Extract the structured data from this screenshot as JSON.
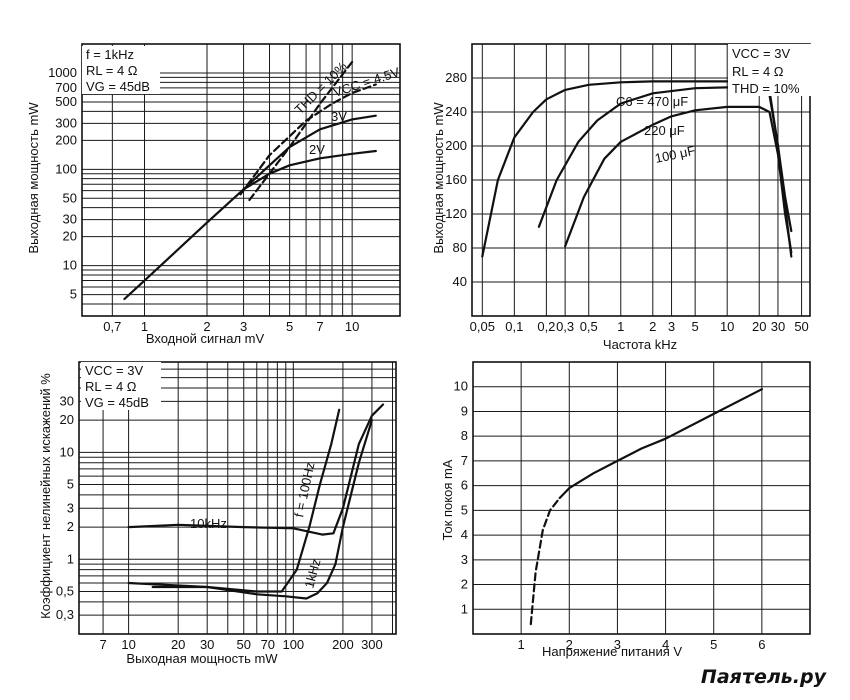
{
  "watermark": "Паяτель.ру",
  "chart_data": [
    {
      "id": "c1",
      "type": "line",
      "xscale": "log",
      "yscale": "log",
      "xlabel": "Входной сигнал mV",
      "ylabel": "Выходная мощность mW",
      "xlim": [
        0.5,
        17
      ],
      "ylim": [
        3,
        2000
      ],
      "xticks": [
        0.7,
        1,
        2,
        3,
        5,
        7,
        10
      ],
      "yticks": [
        5,
        10,
        20,
        30,
        50,
        100,
        200,
        300,
        500,
        700,
        1000
      ],
      "xgrid": [
        0.5,
        0.7,
        1,
        2,
        3,
        4,
        5,
        6,
        7,
        8,
        9,
        10
      ],
      "ygrid": [
        3,
        4,
        5,
        6,
        7,
        8,
        9,
        10,
        20,
        30,
        40,
        50,
        60,
        70,
        80,
        90,
        100,
        200,
        300,
        400,
        500,
        600,
        700,
        800,
        900,
        1000,
        2000
      ],
      "conditions": [
        "f = 1kHz",
        "RL = 4 Ω",
        "VG = 45dB"
      ],
      "series": [
        {
          "name": "VCC = 4.5V",
          "dashed": true,
          "x": [
            2.9,
            4,
            6,
            8,
            10,
            13
          ],
          "y": [
            55,
            140,
            320,
            480,
            620,
            760
          ]
        },
        {
          "name": "3V",
          "x": [
            0.8,
            1,
            2,
            3,
            4,
            5,
            7,
            10,
            13
          ],
          "y": [
            4.5,
            7,
            28,
            62,
            110,
            170,
            260,
            330,
            360
          ]
        },
        {
          "name": "2V",
          "x": [
            3,
            4,
            5,
            7,
            10,
            13
          ],
          "y": [
            62,
            90,
            110,
            130,
            145,
            155
          ]
        },
        {
          "name": "THD = 10%",
          "dashed": true,
          "x": [
            3.2,
            5,
            7,
            10
          ],
          "y": [
            48,
            170,
            480,
            1300
          ]
        }
      ]
    },
    {
      "id": "c2",
      "type": "line",
      "xscale": "log",
      "yscale": "linear",
      "xlabel": "Частота kHz",
      "ylabel": "Выходная мощность mW",
      "xlim": [
        0.04,
        60
      ],
      "ylim": [
        0,
        320
      ],
      "xticks": [
        0.05,
        0.1,
        0.2,
        0.3,
        0.5,
        1,
        2,
        3,
        5,
        10,
        20,
        30,
        50
      ],
      "yticks": [
        40,
        80,
        120,
        160,
        200,
        240,
        280
      ],
      "xgrid": [
        0.05,
        0.1,
        0.2,
        0.3,
        0.5,
        1,
        2,
        3,
        5,
        10,
        20,
        30,
        50
      ],
      "ygrid": [
        40,
        80,
        120,
        160,
        200,
        240,
        280
      ],
      "conditions": [
        "VCC = 3V",
        "RL = 4 Ω",
        "THD = 10%"
      ],
      "series": [
        {
          "name": "C6 = 470 μF",
          "x": [
            0.05,
            0.07,
            0.1,
            0.15,
            0.2,
            0.3,
            0.5,
            1,
            2,
            5,
            10,
            20,
            25,
            30,
            35,
            40
          ],
          "y": [
            70,
            160,
            210,
            240,
            255,
            266,
            272,
            275,
            276,
            276,
            276,
            275,
            265,
            200,
            140,
            100
          ]
        },
        {
          "name": "220 μF",
          "x": [
            0.17,
            0.25,
            0.4,
            0.6,
            1,
            2,
            5,
            10,
            20,
            25,
            30,
            35,
            40
          ],
          "y": [
            105,
            160,
            205,
            230,
            250,
            262,
            268,
            269,
            269,
            260,
            200,
            130,
            70
          ]
        },
        {
          "name": "100 μF",
          "x": [
            0.3,
            0.45,
            0.7,
            1,
            2,
            3,
            5,
            10,
            20,
            25,
            30,
            35,
            40
          ],
          "y": [
            82,
            140,
            185,
            205,
            225,
            235,
            242,
            246,
            246,
            240,
            190,
            120,
            75
          ]
        }
      ]
    },
    {
      "id": "c3",
      "type": "line",
      "xscale": "log",
      "yscale": "log",
      "xlabel": "Выходная мощность mW",
      "ylabel": "Коэффициент нелинейных искажений %",
      "xlim": [
        5,
        420
      ],
      "ylim": [
        0.2,
        70
      ],
      "xticks": [
        7,
        10,
        20,
        30,
        50,
        70,
        100,
        200,
        300
      ],
      "yticks": [
        0.3,
        0.5,
        1,
        2,
        3,
        5,
        10,
        20,
        30
      ],
      "xgrid": [
        5,
        7,
        10,
        20,
        30,
        40,
        50,
        60,
        70,
        80,
        90,
        100,
        200,
        300,
        400
      ],
      "ygrid": [
        0.2,
        0.3,
        0.4,
        0.5,
        0.6,
        0.7,
        0.8,
        0.9,
        1,
        2,
        3,
        4,
        5,
        6,
        7,
        8,
        9,
        10,
        20,
        30,
        40,
        50,
        60,
        70
      ],
      "conditions": [
        "VCC = 3V",
        "RL = 4 Ω",
        "VG = 45dB"
      ],
      "series": [
        {
          "name": "10kHz",
          "x": [
            10,
            20,
            50,
            100,
            150,
            175,
            200,
            250,
            300,
            350
          ],
          "y": [
            2,
            2.1,
            2,
            1.95,
            1.7,
            1.75,
            3,
            12,
            22,
            28
          ]
        },
        {
          "name": "f = 100Hz",
          "x": [
            10,
            30,
            60,
            85,
            105,
            125,
            145,
            170,
            190
          ],
          "y": [
            0.6,
            0.55,
            0.5,
            0.5,
            0.8,
            2,
            5,
            12,
            25
          ]
        },
        {
          "name": "1kHz",
          "x": [
            14,
            30,
            60,
            90,
            120,
            140,
            160,
            180,
            200,
            250,
            300
          ],
          "y": [
            0.55,
            0.55,
            0.47,
            0.45,
            0.43,
            0.48,
            0.6,
            0.9,
            2,
            8,
            20
          ]
        }
      ]
    },
    {
      "id": "c4",
      "type": "line",
      "xscale": "linear",
      "yscale": "linear",
      "xlabel": "Напряжение питания V",
      "ylabel": "Ток покоя mA",
      "xlim": [
        0,
        7
      ],
      "ylim": [
        0,
        11
      ],
      "xticks": [
        1,
        2,
        3,
        4,
        5,
        6
      ],
      "yticks": [
        1,
        2,
        3,
        4,
        5,
        6,
        7,
        8,
        9,
        10
      ],
      "xgrid": [
        1,
        2,
        3,
        4,
        5,
        6
      ],
      "ygrid": [
        1,
        2,
        3,
        4,
        5,
        6,
        7,
        8,
        9,
        10
      ],
      "conditions": [],
      "series": [
        {
          "name": "dashed",
          "dashed": true,
          "x": [
            1.2,
            1.3,
            1.45,
            1.6,
            1.8
          ],
          "y": [
            0.4,
            2.5,
            4.2,
            5.0,
            5.5
          ]
        },
        {
          "name": "solid",
          "x": [
            1.8,
            2,
            2.5,
            3,
            3.5,
            4,
            5,
            6
          ],
          "y": [
            5.5,
            5.9,
            6.5,
            7.0,
            7.5,
            7.9,
            8.9,
            9.9
          ]
        }
      ]
    }
  ]
}
